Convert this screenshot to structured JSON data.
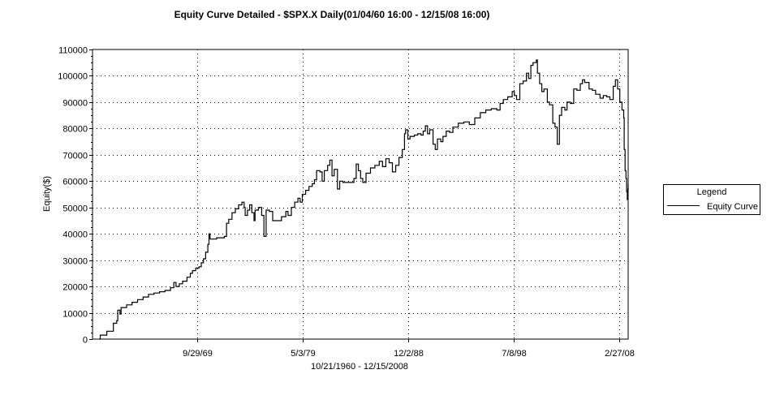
{
  "chart_data": {
    "type": "line",
    "title": "Equity Curve Detailed - $SPX.X Daily(01/04/60 16:00 - 12/15/08 16:00)",
    "xlabel": "10/21/1960 - 12/15/2008",
    "ylabel": "Equity($)",
    "x_tick_labels": [
      {
        "label": "9/29/69",
        "year": 1969.74
      },
      {
        "label": "5/3/79",
        "year": 1979.34
      },
      {
        "label": "12/2/88",
        "year": 1988.92
      },
      {
        "label": "7/8/98",
        "year": 1998.52
      },
      {
        "label": "2/27/08",
        "year": 2008.16
      }
    ],
    "xlim": [
      1960.2,
      2008.96
    ],
    "ylim": [
      0,
      110000
    ],
    "y_ticks": [
      0,
      10000,
      20000,
      30000,
      40000,
      50000,
      60000,
      70000,
      80000,
      90000,
      100000,
      110000
    ],
    "grid": true,
    "legend": {
      "title": "Legend",
      "position": "right",
      "entries": [
        "Equity Curve"
      ]
    },
    "series": [
      {
        "name": "Equity Curve",
        "color": "#000000",
        "points": [
          [
            1960.81,
            0
          ],
          [
            1960.9,
            1500
          ],
          [
            1961.4,
            1500
          ],
          [
            1961.5,
            3000
          ],
          [
            1961.9,
            3000
          ],
          [
            1962.1,
            6000
          ],
          [
            1962.4,
            7000
          ],
          [
            1962.5,
            11000
          ],
          [
            1962.7,
            9500
          ],
          [
            1962.8,
            12000
          ],
          [
            1963.3,
            13000
          ],
          [
            1963.8,
            14000
          ],
          [
            1964.3,
            15000
          ],
          [
            1964.8,
            16000
          ],
          [
            1965.3,
            17000
          ],
          [
            1965.8,
            17500
          ],
          [
            1966.3,
            18000
          ],
          [
            1966.8,
            18500
          ],
          [
            1967.3,
            19500
          ],
          [
            1967.6,
            21500
          ],
          [
            1967.8,
            20000
          ],
          [
            1968.1,
            21000
          ],
          [
            1968.4,
            22000
          ],
          [
            1968.8,
            23500
          ],
          [
            1969.1,
            25000
          ],
          [
            1969.3,
            26000
          ],
          [
            1969.6,
            27000
          ],
          [
            1969.9,
            27500
          ],
          [
            1970.1,
            29000
          ],
          [
            1970.3,
            30500
          ],
          [
            1970.5,
            33000
          ],
          [
            1970.7,
            36000
          ],
          [
            1970.8,
            40000
          ],
          [
            1970.9,
            38000
          ],
          [
            1971.5,
            38500
          ],
          [
            1972.2,
            39000
          ],
          [
            1972.4,
            44000
          ],
          [
            1972.6,
            45500
          ],
          [
            1972.9,
            48000
          ],
          [
            1973.2,
            49500
          ],
          [
            1973.5,
            51000
          ],
          [
            1973.8,
            52000
          ],
          [
            1974.0,
            50000
          ],
          [
            1974.1,
            47000
          ],
          [
            1974.3,
            49000
          ],
          [
            1974.5,
            51000
          ],
          [
            1974.7,
            48000
          ],
          [
            1974.9,
            45000
          ],
          [
            1975.0,
            49000
          ],
          [
            1975.3,
            50000
          ],
          [
            1975.6,
            47000
          ],
          [
            1975.8,
            39000
          ],
          [
            1976.0,
            49000
          ],
          [
            1976.3,
            48500
          ],
          [
            1976.6,
            45000
          ],
          [
            1977.0,
            45000
          ],
          [
            1977.4,
            46500
          ],
          [
            1977.8,
            48500
          ],
          [
            1978.0,
            47000
          ],
          [
            1978.3,
            50000
          ],
          [
            1978.6,
            52000
          ],
          [
            1978.9,
            53500
          ],
          [
            1979.1,
            52000
          ],
          [
            1979.3,
            55000
          ],
          [
            1979.6,
            56500
          ],
          [
            1979.9,
            58000
          ],
          [
            1980.2,
            59000
          ],
          [
            1980.4,
            60500
          ],
          [
            1980.6,
            64000
          ],
          [
            1980.9,
            63500
          ],
          [
            1981.1,
            60000
          ],
          [
            1981.3,
            64000
          ],
          [
            1981.6,
            66000
          ],
          [
            1981.8,
            68000
          ],
          [
            1982.0,
            62000
          ],
          [
            1982.2,
            64500
          ],
          [
            1982.5,
            57000
          ],
          [
            1982.7,
            60000
          ],
          [
            1983.0,
            59500
          ],
          [
            1983.5,
            59500
          ],
          [
            1984.0,
            61000
          ],
          [
            1984.2,
            66500
          ],
          [
            1984.4,
            64000
          ],
          [
            1984.6,
            61000
          ],
          [
            1984.8,
            59500
          ],
          [
            1985.1,
            63000
          ],
          [
            1985.5,
            65000
          ],
          [
            1985.9,
            66000
          ],
          [
            1986.3,
            67500
          ],
          [
            1986.6,
            65500
          ],
          [
            1986.9,
            68500
          ],
          [
            1987.2,
            67000
          ],
          [
            1987.5,
            63500
          ],
          [
            1987.8,
            66000
          ],
          [
            1988.1,
            69000
          ],
          [
            1988.4,
            72000
          ],
          [
            1988.6,
            78000
          ],
          [
            1988.7,
            79500
          ],
          [
            1988.9,
            76000
          ],
          [
            1989.1,
            77000
          ],
          [
            1989.5,
            77500
          ],
          [
            1989.8,
            78000
          ],
          [
            1990.1,
            77500
          ],
          [
            1990.3,
            79000
          ],
          [
            1990.5,
            81000
          ],
          [
            1990.7,
            78000
          ],
          [
            1990.9,
            79500
          ],
          [
            1991.2,
            74000
          ],
          [
            1991.4,
            72000
          ],
          [
            1991.6,
            76000
          ],
          [
            1991.9,
            75000
          ],
          [
            1992.1,
            77000
          ],
          [
            1992.4,
            79000
          ],
          [
            1992.7,
            78500
          ],
          [
            1993.0,
            80500
          ],
          [
            1993.5,
            82000
          ],
          [
            1994.0,
            82500
          ],
          [
            1994.5,
            81500
          ],
          [
            1995.0,
            84000
          ],
          [
            1995.5,
            86000
          ],
          [
            1996.0,
            87000
          ],
          [
            1996.5,
            87500
          ],
          [
            1997.0,
            87000
          ],
          [
            1997.3,
            89500
          ],
          [
            1997.6,
            91000
          ],
          [
            1998.0,
            92000
          ],
          [
            1998.4,
            94000
          ],
          [
            1998.6,
            92500
          ],
          [
            1998.8,
            91000
          ],
          [
            1999.1,
            97000
          ],
          [
            1999.4,
            98000
          ],
          [
            1999.7,
            101000
          ],
          [
            1999.9,
            99000
          ],
          [
            2000.1,
            104000
          ],
          [
            2000.3,
            105000
          ],
          [
            2000.6,
            106000
          ],
          [
            2000.7,
            101000
          ],
          [
            2000.9,
            97000
          ],
          [
            2001.1,
            94000
          ],
          [
            2001.3,
            95000
          ],
          [
            2001.6,
            90000
          ],
          [
            2001.8,
            89000
          ],
          [
            2002.1,
            82000
          ],
          [
            2002.3,
            80500
          ],
          [
            2002.5,
            74000
          ],
          [
            2002.7,
            85000
          ],
          [
            2002.9,
            88000
          ],
          [
            2003.2,
            87000
          ],
          [
            2003.4,
            90000
          ],
          [
            2003.7,
            89500
          ],
          [
            2004.0,
            95000
          ],
          [
            2004.3,
            94500
          ],
          [
            2004.6,
            97000
          ],
          [
            2004.8,
            98500
          ],
          [
            2005.0,
            97500
          ],
          [
            2005.4,
            95000
          ],
          [
            2005.7,
            94500
          ],
          [
            2006.0,
            93000
          ],
          [
            2006.4,
            91500
          ],
          [
            2006.7,
            92500
          ],
          [
            2007.0,
            92000
          ],
          [
            2007.3,
            91000
          ],
          [
            2007.6,
            96000
          ],
          [
            2007.8,
            98500
          ],
          [
            2008.0,
            95000
          ],
          [
            2008.2,
            90000
          ],
          [
            2008.4,
            87000
          ],
          [
            2008.55,
            84000
          ],
          [
            2008.6,
            72000
          ],
          [
            2008.68,
            64000
          ],
          [
            2008.76,
            61000
          ],
          [
            2008.82,
            56000
          ],
          [
            2008.88,
            53000
          ],
          [
            2008.93,
            57000
          ],
          [
            2008.96,
            59000
          ]
        ]
      }
    ]
  }
}
